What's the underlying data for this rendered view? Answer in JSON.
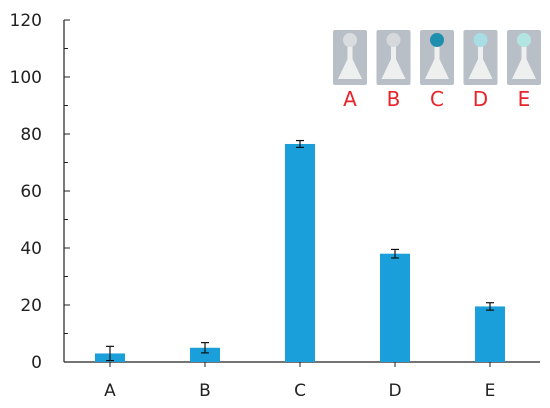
{
  "chart_data": {
    "type": "bar",
    "title": "",
    "xlabel": "",
    "ylabel": "",
    "categories": [
      "A",
      "B",
      "C",
      "D",
      "E"
    ],
    "values": [
      3,
      5,
      76.5,
      38,
      19.5
    ],
    "errors": [
      2.5,
      1.8,
      1.2,
      1.5,
      1.3
    ],
    "ylim": [
      0,
      120
    ],
    "yticks": [
      "0",
      "20",
      "40",
      "60",
      "80",
      "100",
      "120"
    ],
    "grid": false,
    "bar_color": "#1a9fdb"
  },
  "inset": {
    "labels": [
      "A",
      "B",
      "C",
      "D",
      "E"
    ],
    "label_color": "#e8232a",
    "spot_colors": [
      "#d9dde0",
      "#d6d9dc",
      "#1f8fb0",
      "#a7dde3",
      "#b2e4e2"
    ],
    "background": "#b9bfc6"
  }
}
